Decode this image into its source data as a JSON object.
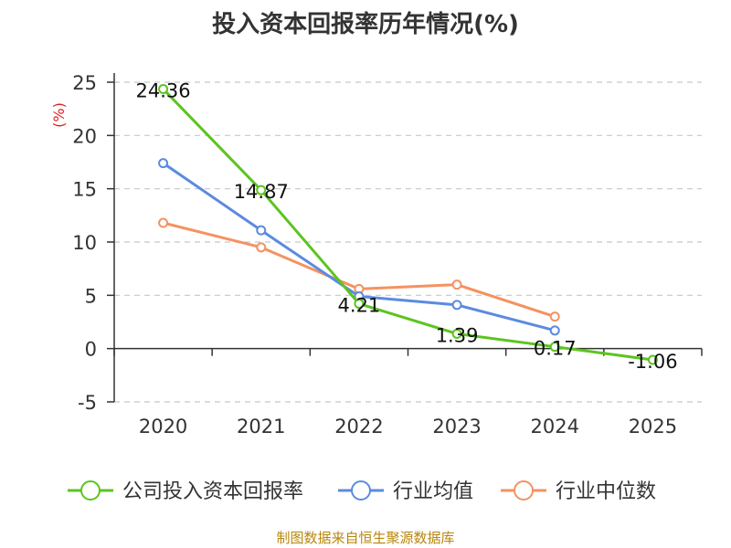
{
  "chart_data": {
    "type": "line",
    "title": "投入资本回报率历年情况(%)",
    "ylabel": "(%)",
    "xlabel": "",
    "categories": [
      "2020",
      "2021",
      "2022",
      "2023",
      "2024",
      "2025"
    ],
    "ylim": [
      -5,
      25
    ],
    "yticks": [
      25,
      20,
      15,
      10,
      5,
      0,
      -5
    ],
    "grid": true,
    "legend_position": "bottom",
    "series": [
      {
        "name": "公司投入资本回报率",
        "color": "#5cc41e",
        "values": [
          24.36,
          14.87,
          4.21,
          1.39,
          0.17,
          -1.06
        ],
        "labels": [
          "24.36",
          "14.87",
          "4.21",
          "1.39",
          "0.17",
          "-1.06"
        ]
      },
      {
        "name": "行业均值",
        "color": "#5b8be0",
        "values": [
          17.4,
          11.1,
          4.9,
          4.1,
          1.7,
          null
        ]
      },
      {
        "name": "行业中位数",
        "color": "#f59260",
        "values": [
          11.8,
          9.5,
          5.6,
          6.0,
          3.0,
          null
        ]
      }
    ]
  },
  "source": "制图数据来自恒生聚源数据库"
}
